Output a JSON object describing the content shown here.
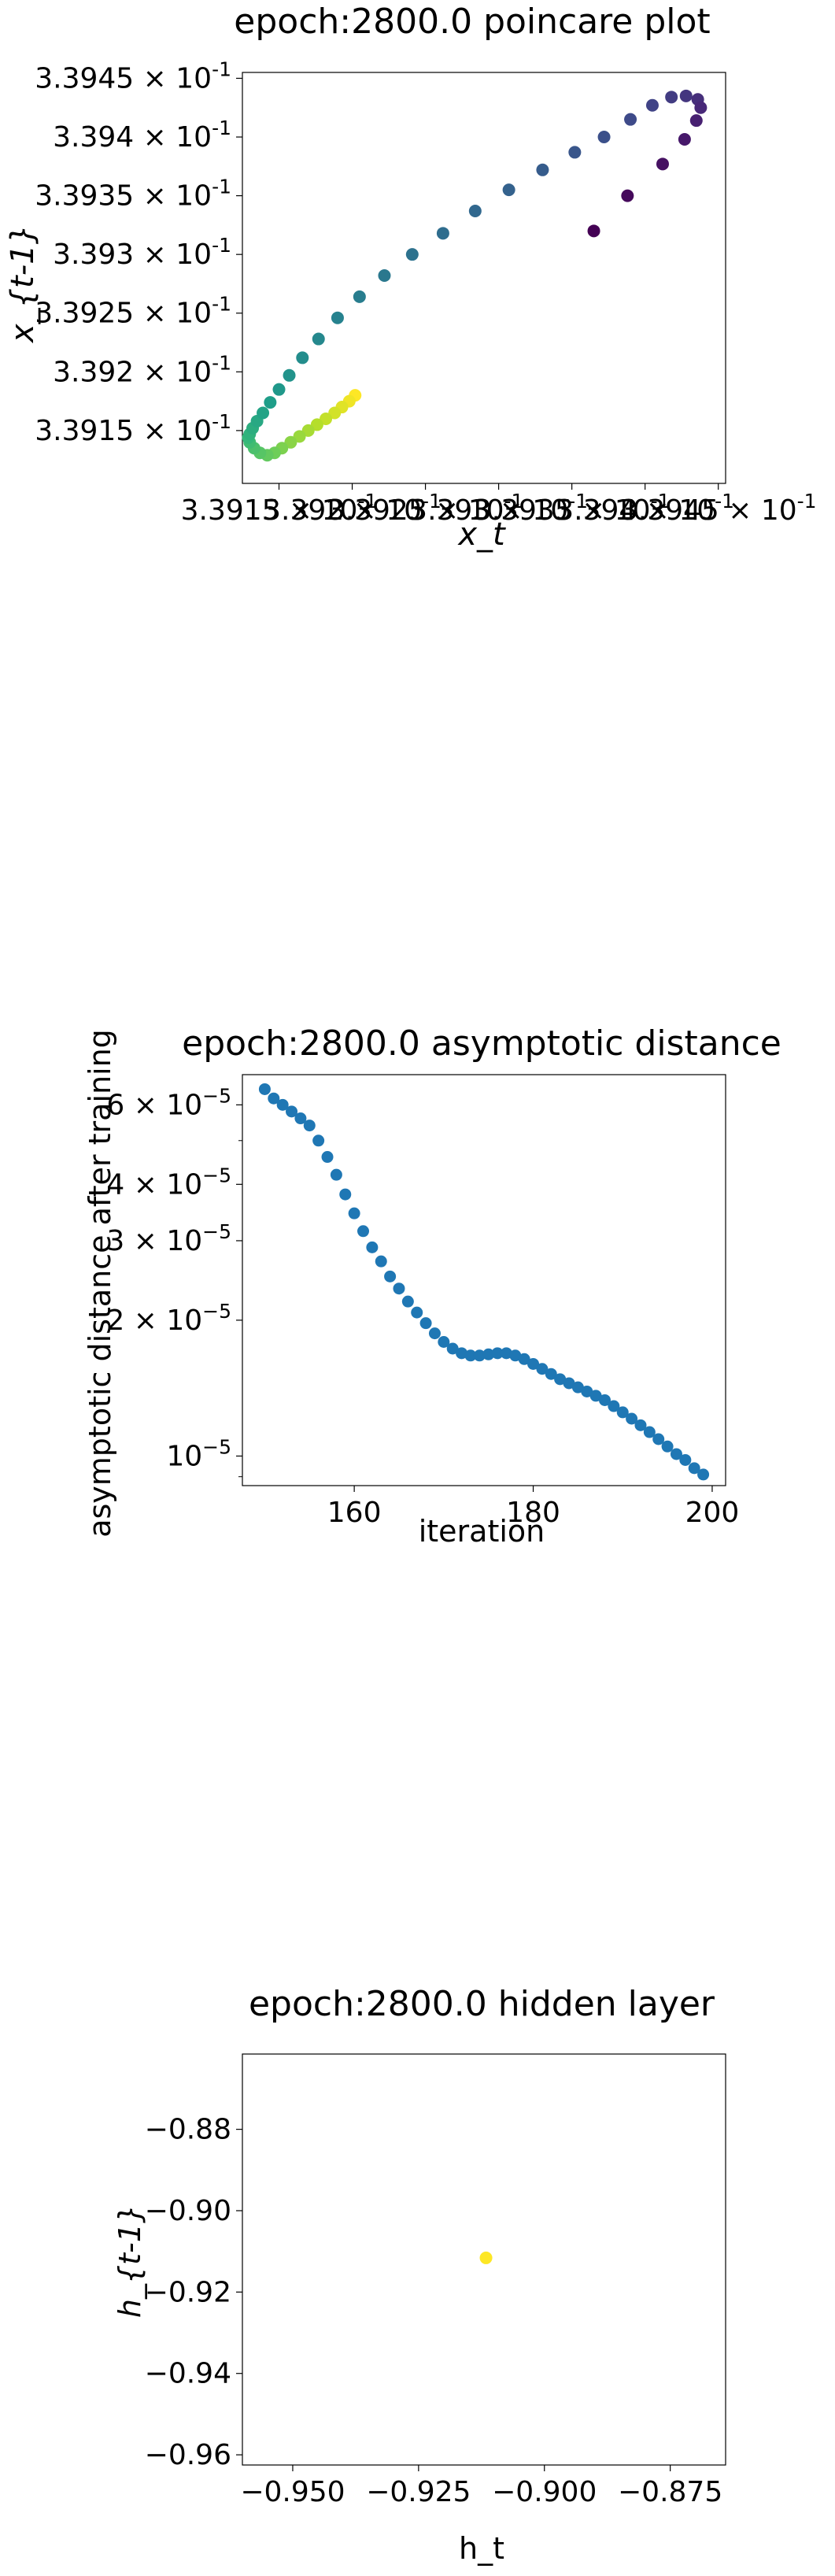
{
  "chart_data": [
    {
      "type": "scatter",
      "title": "epoch:2800.0 poincare plot",
      "xlabel": "x_t",
      "ylabel": "x_{t-1}",
      "colormap": "viridis",
      "color_order": "early points dark purple, late points yellow",
      "xlim": [
        0.339125,
        0.339455
      ],
      "ylim": [
        0.339105,
        0.339455
      ],
      "x_ticks": [
        {
          "base": "3.3915",
          "exp": "-1"
        },
        {
          "base": "3.392",
          "exp": "-1"
        },
        {
          "base": "3.3925",
          "exp": "-1"
        },
        {
          "base": "3.393",
          "exp": "-1"
        },
        {
          "base": "3.3935",
          "exp": "-1"
        },
        {
          "base": "3.394",
          "exp": "-1"
        },
        {
          "base": "3.3945",
          "exp": "-1"
        }
      ],
      "y_ticks": [
        {
          "base": "3.3915",
          "exp": "-1"
        },
        {
          "base": "3.392",
          "exp": "-1"
        },
        {
          "base": "3.3925",
          "exp": "-1"
        },
        {
          "base": "3.393",
          "exp": "-1"
        },
        {
          "base": "3.3935",
          "exp": "-1"
        },
        {
          "base": "3.394",
          "exp": "-1"
        },
        {
          "base": "3.3945",
          "exp": "-1"
        }
      ],
      "x": [
        0.339365,
        0.339388,
        0.339412,
        0.339427,
        0.339435,
        0.339438,
        0.339436,
        0.339428,
        0.339418,
        0.339405,
        0.33939,
        0.339372,
        0.339352,
        0.33933,
        0.339307,
        0.339284,
        0.339262,
        0.339241,
        0.339222,
        0.339205,
        0.33919,
        0.339177,
        0.339166,
        0.339157,
        0.33915,
        0.339144,
        0.339139,
        0.339135,
        0.339132,
        0.33913,
        0.339129,
        0.33913,
        0.339133,
        0.339137,
        0.339142,
        0.339147,
        0.339152,
        0.339158,
        0.339164,
        0.33917,
        0.339176,
        0.339182,
        0.339188,
        0.339193,
        0.339198,
        0.339202
      ],
      "y": [
        0.33932,
        0.33935,
        0.339377,
        0.339398,
        0.339414,
        0.339425,
        0.339432,
        0.339435,
        0.339434,
        0.339427,
        0.339415,
        0.3394,
        0.339387,
        0.339372,
        0.339355,
        0.339337,
        0.339318,
        0.3393,
        0.339282,
        0.339264,
        0.339246,
        0.339228,
        0.339212,
        0.339197,
        0.339185,
        0.339174,
        0.339165,
        0.339158,
        0.339152,
        0.339147,
        0.339144,
        0.33914,
        0.339135,
        0.339131,
        0.339129,
        0.339131,
        0.339135,
        0.33914,
        0.339145,
        0.33915,
        0.339155,
        0.33916,
        0.339165,
        0.33917,
        0.339175,
        0.33918
      ]
    },
    {
      "type": "scatter",
      "title": "epoch:2800.0 asymptotic distance",
      "xlabel": "iteration",
      "ylabel": "asymptotic distance after training",
      "color": "#1f77b4",
      "yscale": "log",
      "xlim": [
        147.5,
        201.5
      ],
      "ylim": [
        8.6e-06,
        7e-05
      ],
      "x_ticks": [
        160,
        180,
        200
      ],
      "x_tick_labels": [
        "160",
        "180",
        "200"
      ],
      "y_ticks": [
        {
          "value": 6e-05,
          "base": "6",
          "exp": "−5"
        },
        {
          "value": 4e-05,
          "base": "4",
          "exp": "−5"
        },
        {
          "value": 3e-05,
          "base": "3",
          "exp": "−5"
        },
        {
          "value": 2e-05,
          "base": "2",
          "exp": "−5"
        },
        {
          "value": 1e-05,
          "base": "",
          "exp": "−5"
        }
      ],
      "x": [
        150,
        151,
        152,
        153,
        154,
        155,
        156,
        157,
        158,
        159,
        160,
        161,
        162,
        163,
        164,
        165,
        166,
        167,
        168,
        169,
        170,
        171,
        172,
        173,
        174,
        175,
        176,
        177,
        178,
        179,
        180,
        181,
        182,
        183,
        184,
        185,
        186,
        187,
        188,
        189,
        190,
        191,
        192,
        193,
        194,
        195,
        196,
        197,
        198,
        199
      ],
      "y": [
        6.5e-05,
        6.2e-05,
        6e-05,
        5.8e-05,
        5.6e-05,
        5.4e-05,
        5e-05,
        4.6e-05,
        4.2e-05,
        3.8e-05,
        3.45e-05,
        3.15e-05,
        2.9e-05,
        2.7e-05,
        2.5e-05,
        2.35e-05,
        2.2e-05,
        2.08e-05,
        1.97e-05,
        1.87e-05,
        1.79e-05,
        1.73e-05,
        1.69e-05,
        1.67e-05,
        1.67e-05,
        1.68e-05,
        1.69e-05,
        1.69e-05,
        1.67e-05,
        1.64e-05,
        1.6e-05,
        1.56e-05,
        1.52e-05,
        1.48e-05,
        1.45e-05,
        1.42e-05,
        1.39e-05,
        1.36e-05,
        1.33e-05,
        1.29e-05,
        1.25e-05,
        1.21e-05,
        1.17e-05,
        1.13e-05,
        1.09e-05,
        1.05e-05,
        1.01e-05,
        9.8e-06,
        9.4e-06,
        9.1e-06
      ]
    },
    {
      "type": "scatter",
      "title": "epoch:2800.0 hidden layer",
      "xlabel": "h_t",
      "ylabel": "h_{t-1}",
      "xlim": [
        -0.96,
        -0.864
      ],
      "ylim": [
        -0.9625,
        -0.8615
      ],
      "x_ticks": [
        -0.95,
        -0.925,
        -0.9,
        -0.875
      ],
      "x_tick_labels": [
        "−0.950",
        "−0.925",
        "−0.900",
        "−0.875"
      ],
      "y_ticks": [
        -0.96,
        -0.94,
        -0.92,
        -0.9,
        -0.88
      ],
      "y_tick_labels": [
        "−0.96",
        "−0.94",
        "−0.92",
        "−0.90",
        "−0.88"
      ],
      "x": [
        -0.9116
      ],
      "y": [
        -0.9116
      ],
      "color": "#fde725"
    }
  ]
}
